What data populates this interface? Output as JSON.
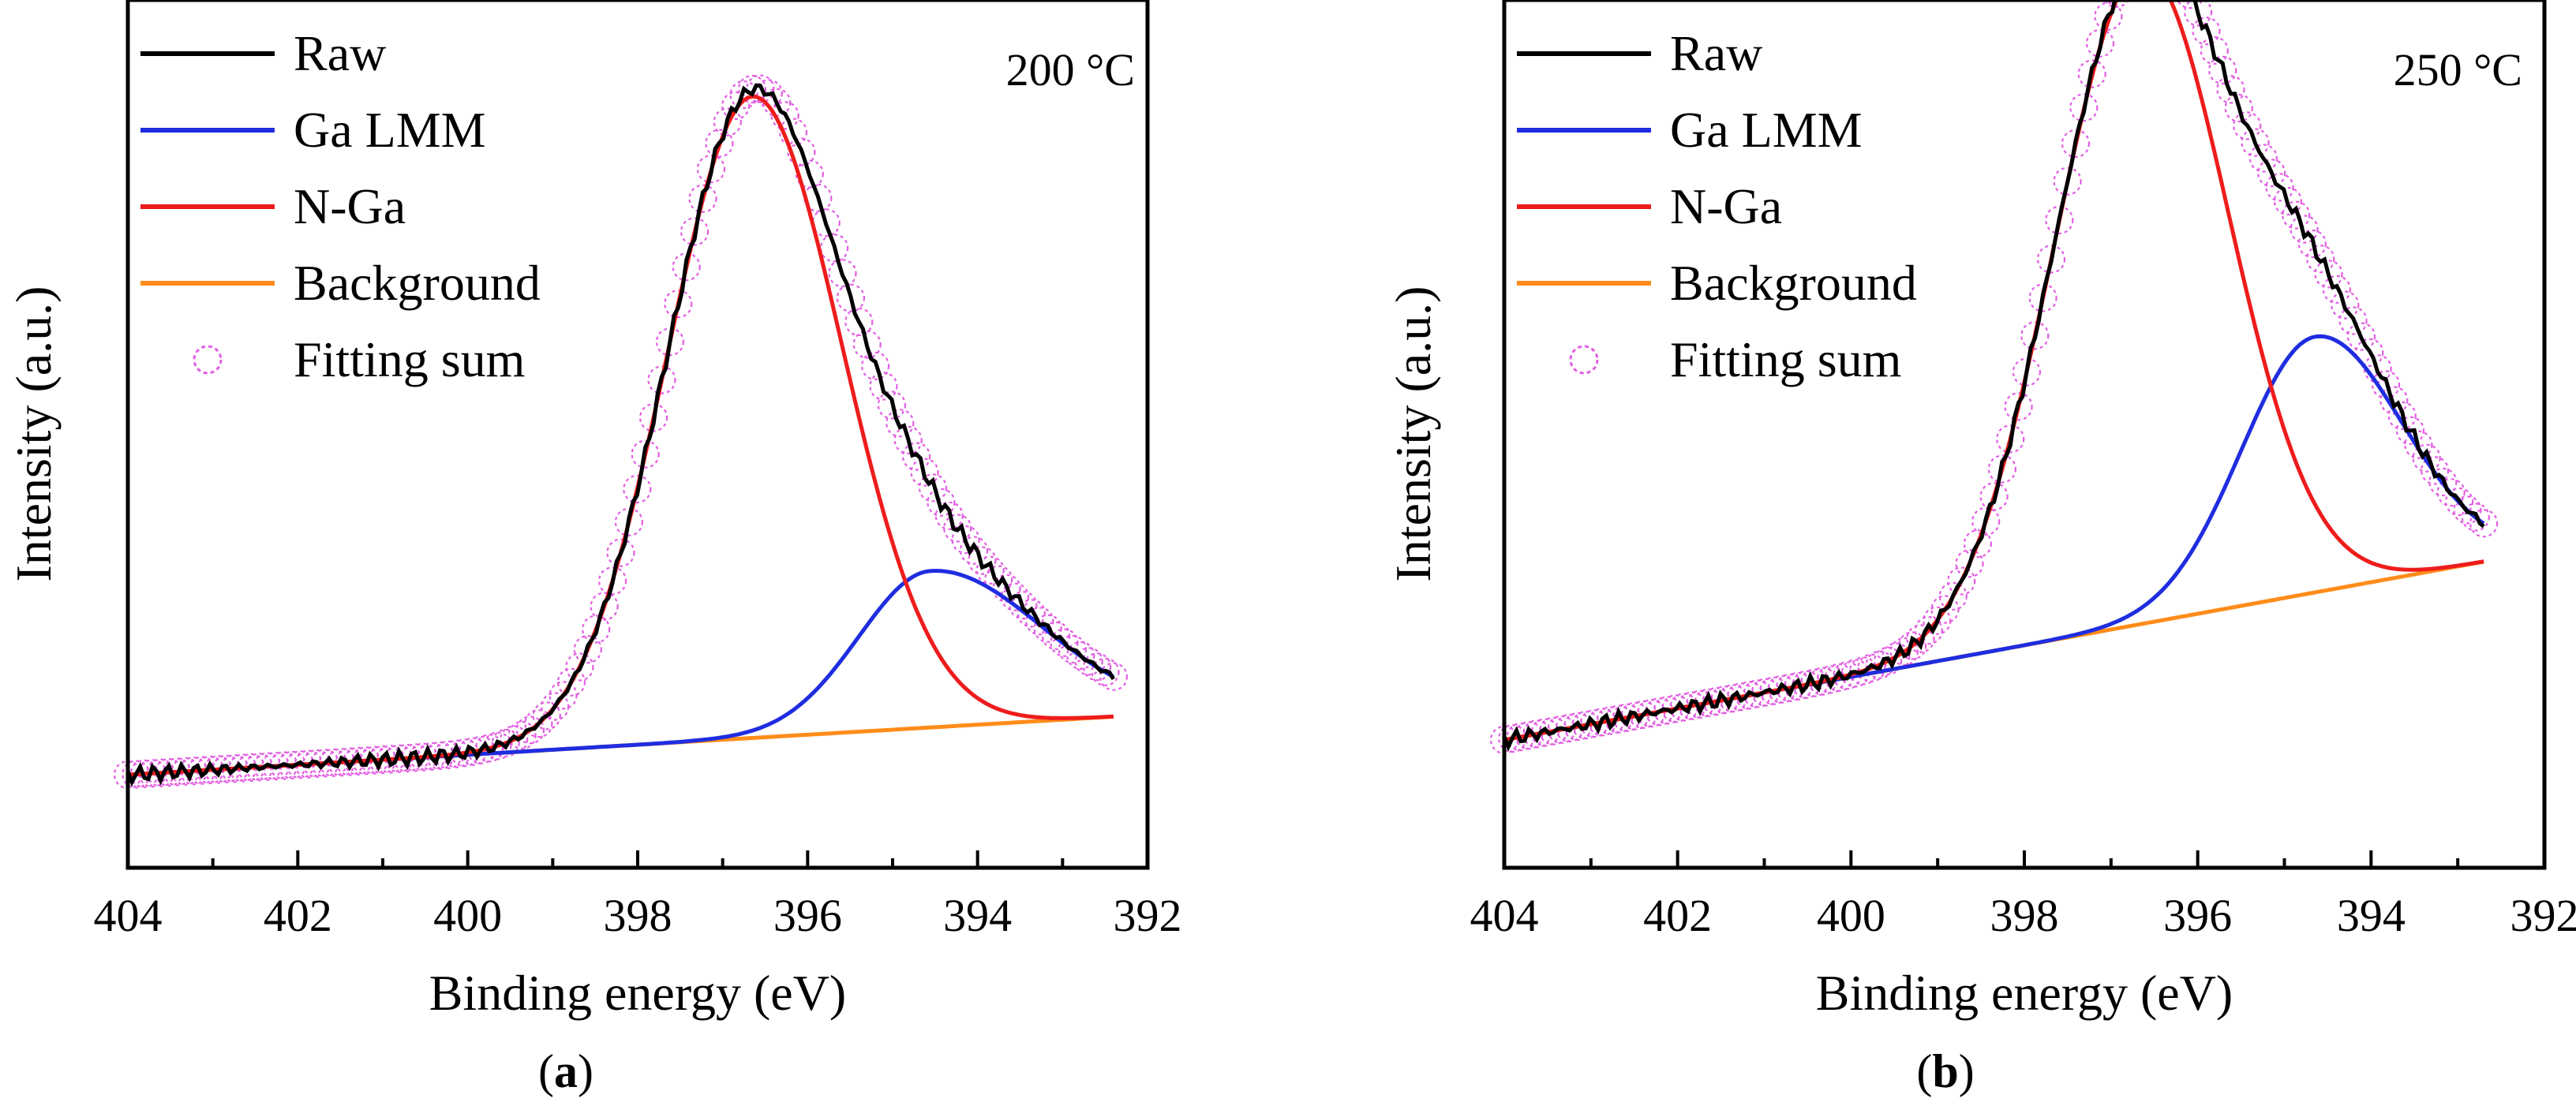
{
  "chart_data": [
    {
      "type": "line",
      "panel": "a",
      "caption_letter": "a",
      "annotation": "200 °C",
      "xlabel": "Binding energy (eV)",
      "ylabel": "Intensity (a.u.)",
      "xlim": [
        404,
        392
      ],
      "ylim": [
        -0.12,
        1.0
      ],
      "x_ticks": [
        404,
        402,
        400,
        398,
        396,
        394,
        392
      ],
      "x_tick_labels": [
        "404",
        "402",
        "400",
        "398",
        "396",
        "394",
        "392"
      ],
      "x_range": [
        404,
        392.4
      ],
      "legend_position": "top-left",
      "legend": [
        "Raw",
        "Ga LMM",
        "N-Ga",
        "Background",
        "Fitting sum"
      ],
      "background": {
        "start": 0.0,
        "end": 0.075
      },
      "components": [
        {
          "name": "N-Ga",
          "center": 396.65,
          "height": 0.828,
          "sigma": 1.02,
          "left_sigma": 1.05,
          "right_sigma": 1.0
        },
        {
          "name": "Ga LMM",
          "center": 394.55,
          "height": 0.202,
          "sigma": 0.95,
          "left_sigma": 1.3,
          "right_sigma": 0.85
        }
      ],
      "series": [
        {
          "name": "Raw",
          "color": "#000000"
        },
        {
          "name": "Ga LMM",
          "color": "#1f2de0"
        },
        {
          "name": "N-Ga",
          "color": "#ee1c1c"
        },
        {
          "name": "Background",
          "color": "#ff8c1a"
        },
        {
          "name": "Fitting sum",
          "color": "#e35ee3"
        }
      ]
    },
    {
      "type": "line",
      "panel": "b",
      "caption_letter": "b",
      "annotation": "250 °C",
      "xlabel": "Binding energy (eV)",
      "ylabel": "Intensity (a.u.)",
      "xlim": [
        404,
        392
      ],
      "ylim": [
        -0.12,
        1.0
      ],
      "x_ticks": [
        404,
        402,
        400,
        398,
        396,
        394,
        392
      ],
      "x_tick_labels": [
        "404",
        "402",
        "400",
        "398",
        "396",
        "394",
        "392"
      ],
      "x_range": [
        404,
        392.7
      ],
      "legend_position": "top-left",
      "legend": [
        "Raw",
        "Ga LMM",
        "N-Ga",
        "Background",
        "Fitting sum"
      ],
      "background": {
        "start": 0.045,
        "end": 0.275
      },
      "components": [
        {
          "name": "N-Ga",
          "center": 396.65,
          "height": 0.845,
          "sigma": 1.0,
          "left_sigma": 1.0,
          "right_sigma": 1.0
        },
        {
          "name": "Ga LMM",
          "center": 394.65,
          "height": 0.33,
          "sigma": 0.85,
          "left_sigma": 1.0,
          "right_sigma": 0.85
        }
      ],
      "series": [
        {
          "name": "Raw",
          "color": "#000000"
        },
        {
          "name": "Ga LMM",
          "color": "#1f2de0"
        },
        {
          "name": "N-Ga",
          "color": "#ee1c1c"
        },
        {
          "name": "Background",
          "color": "#ff8c1a"
        },
        {
          "name": "Fitting sum",
          "color": "#e35ee3"
        }
      ]
    }
  ]
}
